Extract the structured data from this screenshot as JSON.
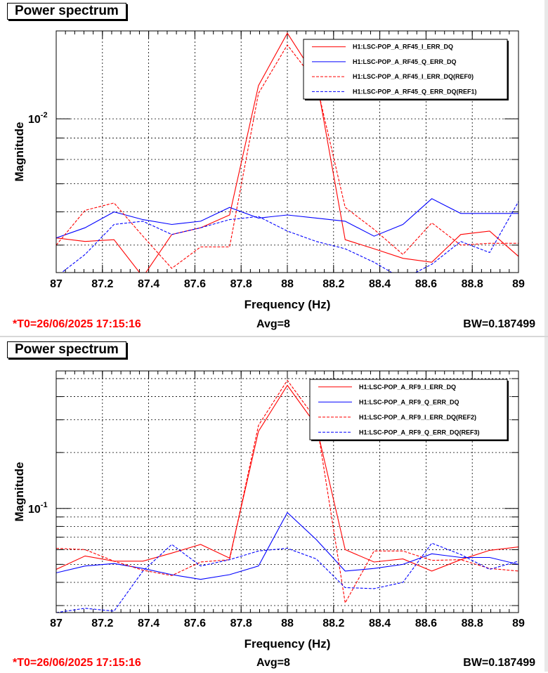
{
  "chart_data": [
    {
      "type": "line",
      "title": "Power spectrum",
      "xlabel": "Frequency (Hz)",
      "ylabel": "Magnitude",
      "xlim": [
        87,
        89
      ],
      "ylim": [
        0.0043,
        0.0162
      ],
      "y_scale": "log",
      "grid": true,
      "legend_position": "top-right",
      "x": [
        87,
        87.125,
        87.25,
        87.375,
        87.5,
        87.625,
        87.75,
        87.875,
        88,
        88.125,
        88.25,
        88.375,
        88.5,
        88.625,
        88.75,
        88.875,
        89
      ],
      "xtick_labels": [
        "87",
        "87.2",
        "87.4",
        "87.6",
        "87.8",
        "88",
        "88.2",
        "88.4",
        "88.6",
        "88.8",
        "89"
      ],
      "ytick_labels": [
        {
          "base": "10",
          "exp": "-2",
          "value": 0.01
        }
      ],
      "series": [
        {
          "name": "H1:LSC-POP_A_RF45_I_ERR_DQ",
          "color": "#ff0000",
          "style": "solid",
          "values": [
            0.0052,
            0.0051,
            0.00515,
            0.0042,
            0.0053,
            0.0055,
            0.0059,
            0.012,
            0.016,
            0.0125,
            0.00515,
            0.0049,
            0.00465,
            0.00455,
            0.0053,
            0.0054,
            0.0047
          ]
        },
        {
          "name": "H1:LSC-POP_A_RF45_Q_ERR_DQ",
          "color": "#0000ff",
          "style": "solid",
          "values": [
            0.0052,
            0.0055,
            0.006,
            0.00575,
            0.0056,
            0.0057,
            0.00615,
            0.0058,
            0.0059,
            0.0058,
            0.0057,
            0.00525,
            0.0056,
            0.00645,
            0.00595,
            0.00595,
            0.00595
          ]
        },
        {
          "name": "H1:LSC-POP_A_RF45_I_ERR_DQ(REF0)",
          "color": "#ff0000",
          "style": "dashed",
          "values": [
            0.005,
            0.00605,
            0.0063,
            0.00525,
            0.0044,
            0.00495,
            0.00495,
            0.0115,
            0.015,
            0.0122,
            0.00615,
            0.00545,
            0.00475,
            0.00565,
            0.005,
            0.00505,
            0.00505
          ]
        },
        {
          "name": "H1:LSC-POP_A_RF45_Q_ERR_DQ(REF1)",
          "color": "#0000ff",
          "style": "dashed",
          "values": [
            0.0042,
            0.00475,
            0.0056,
            0.0057,
            0.0053,
            0.0055,
            0.00575,
            0.00585,
            0.0054,
            0.0051,
            0.0049,
            0.00455,
            0.00415,
            0.0045,
            0.0051,
            0.0048,
            0.00635
          ]
        }
      ]
    },
    {
      "type": "line",
      "title": "Power spectrum",
      "xlabel": "Frequency (Hz)",
      "ylabel": "Magnitude",
      "xlim": [
        87,
        89
      ],
      "ylim": [
        0.0275,
        0.55
      ],
      "y_scale": "log",
      "grid": true,
      "legend_position": "top-right",
      "x": [
        87,
        87.125,
        87.25,
        87.375,
        87.5,
        87.625,
        87.75,
        87.875,
        88,
        88.125,
        88.25,
        88.375,
        88.5,
        88.625,
        88.75,
        88.875,
        89
      ],
      "xtick_labels": [
        "87",
        "87.2",
        "87.4",
        "87.6",
        "87.8",
        "88",
        "88.2",
        "88.4",
        "88.6",
        "88.8",
        "89"
      ],
      "ytick_labels": [
        {
          "base": "10",
          "exp": "-1",
          "value": 0.1
        }
      ],
      "series": [
        {
          "name": "H1:LSC-POP_A_RF9_I_ERR_DQ",
          "color": "#ff0000",
          "style": "solid",
          "values": [
            0.047,
            0.0555,
            0.052,
            0.052,
            0.0575,
            0.064,
            0.054,
            0.26,
            0.46,
            0.28,
            0.06,
            0.0515,
            0.0535,
            0.046,
            0.053,
            0.0595,
            0.062
          ]
        },
        {
          "name": "H1:LSC-POP_A_RF9_Q_ERR_DQ",
          "color": "#0000ff",
          "style": "solid",
          "values": [
            0.045,
            0.049,
            0.0505,
            0.0475,
            0.044,
            0.0415,
            0.044,
            0.049,
            0.095,
            0.068,
            0.046,
            0.0475,
            0.05,
            0.057,
            0.0545,
            0.0545,
            0.05
          ]
        },
        {
          "name": "H1:LSC-POP_A_RF9_I_ERR_DQ(REF2)",
          "color": "#ff0000",
          "style": "dashed",
          "values": [
            0.061,
            0.06,
            0.052,
            0.0465,
            0.0435,
            0.0515,
            0.053,
            0.28,
            0.49,
            0.3,
            0.031,
            0.059,
            0.059,
            0.0525,
            0.053,
            0.0475,
            0.046
          ]
        },
        {
          "name": "H1:LSC-POP_A_RF9_Q_ERR_DQ(REF3)",
          "color": "#0000ff",
          "style": "dashed",
          "values": [
            0.0275,
            0.029,
            0.028,
            0.046,
            0.064,
            0.049,
            0.053,
            0.059,
            0.061,
            0.0535,
            0.0375,
            0.037,
            0.04,
            0.065,
            0.0565,
            0.047,
            0.052
          ]
        }
      ]
    }
  ],
  "footers": [
    {
      "t0": "*T0=26/06/2025 17:15:16",
      "avg": "Avg=8",
      "bw": "BW=0.187499"
    },
    {
      "t0": "*T0=26/06/2025 17:15:16",
      "avg": "Avg=8",
      "bw": "BW=0.187499"
    }
  ]
}
